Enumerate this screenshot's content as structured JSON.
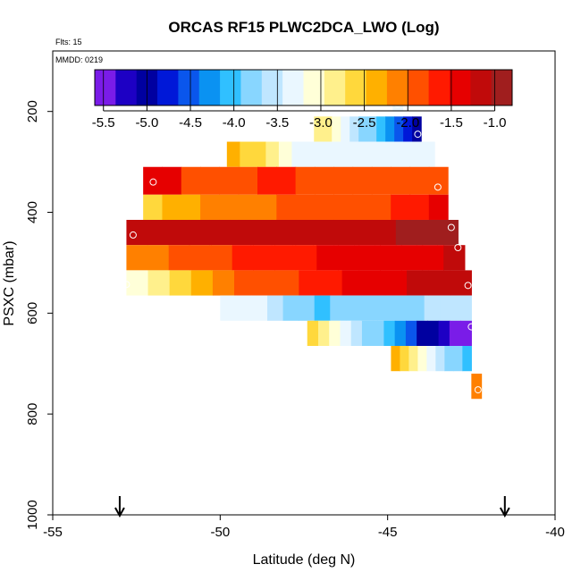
{
  "chart_data": {
    "type": "heatmap",
    "title": "ORCAS RF15 PLWC2DCA_LWO (Log)",
    "flights_label": "Flts: 15",
    "date_label": "MMDD: 0219",
    "xlabel": "Latitude (deg N)",
    "ylabel": "PSXC (mbar)",
    "xlim": [
      -55,
      -40
    ],
    "ylim": [
      1000,
      80
    ],
    "x_ticks": [
      -55,
      -50,
      -45,
      -40
    ],
    "y_ticks": [
      200,
      400,
      600,
      800,
      1000
    ],
    "colorbar": {
      "range": [
        -5.6,
        -0.8
      ],
      "ticks": [
        -5.5,
        -5.0,
        -4.5,
        -4.0,
        -3.5,
        -3.0,
        -2.5,
        -2.0,
        -1.5,
        -1.0
      ],
      "tick_labels": [
        "-5.5",
        "-5.0",
        "-4.5",
        "-4.0",
        "-3.5",
        "-3.0",
        "-2.5",
        "-2.0",
        "-1.5",
        "-1.0"
      ],
      "colors": [
        "#7a1ce8",
        "#1d00c4",
        "#0000a0",
        "#0018d8",
        "#0a56ec",
        "#0a92f2",
        "#30c0ff",
        "#88d6ff",
        "#bfe6ff",
        "#eaf7ff",
        "#ffffd8",
        "#fff08c",
        "#ffd83c",
        "#ffb000",
        "#ff8000",
        "#ff5000",
        "#ff1a00",
        "#e60000",
        "#c00a0a",
        "#a01e1e"
      ]
    },
    "arrows_at_latitude": [
      -53.0,
      -41.5
    ],
    "bands": [
      {
        "p_top": 175,
        "p_bottom": 200,
        "x0": -44.85,
        "x1": -44.55,
        "values": [
          -3.4
        ]
      },
      {
        "p_top": 210,
        "p_bottom": 260,
        "x0": -47.2,
        "x1": -44.0,
        "values": [
          -2.8,
          -2.9,
          -3.1,
          -3.3,
          -3.5,
          -3.7,
          -3.9,
          -4.1,
          -4.3,
          -4.5,
          -4.8,
          -5.1
        ]
      },
      {
        "p_top": 260,
        "p_bottom": 310,
        "x0": -49.8,
        "x1": -43.6,
        "values": [
          -2.3,
          -2.5,
          -2.7,
          -2.9,
          -3.1,
          -3.3,
          -3.4,
          -3.4,
          -3.4,
          -3.4,
          -3.4,
          -3.4,
          -3.4,
          -3.4,
          -3.4,
          -3.4
        ]
      },
      {
        "p_top": 310,
        "p_bottom": 365,
        "x0": -52.3,
        "x1": -43.2,
        "values": [
          -1.5,
          -1.5,
          -1.8,
          -1.8,
          -1.8,
          -1.8,
          -1.6,
          -1.6,
          -1.8,
          -1.8,
          -1.8,
          -1.8,
          -1.9,
          -1.9,
          -1.9,
          -2.0
        ]
      },
      {
        "p_top": 365,
        "p_bottom": 415,
        "x0": -52.3,
        "x1": -43.2,
        "values": [
          -2.5,
          -2.4,
          -2.3,
          -2.2,
          -2.2,
          -2.1,
          -2.1,
          -2.0,
          -2.0,
          -1.9,
          -1.9,
          -1.8,
          -1.8,
          -1.7,
          -1.6,
          -1.5
        ]
      },
      {
        "p_top": 415,
        "p_bottom": 465,
        "x0": -52.8,
        "x1": -42.9,
        "values": [
          -1.1,
          -1.1,
          -1.1,
          -1.1,
          -1.1,
          -1.1,
          -1.1,
          -1.1,
          -1.1,
          -1.1,
          -1.1,
          -1.1,
          -1.1,
          -1.0,
          -1.0,
          -1.0
        ]
      },
      {
        "p_top": 465,
        "p_bottom": 515,
        "x0": -52.8,
        "x1": -42.7,
        "values": [
          -2.1,
          -2.1,
          -2.0,
          -1.9,
          -1.8,
          -1.7,
          -1.7,
          -1.6,
          -1.6,
          -1.5,
          -1.4,
          -1.4,
          -1.3,
          -1.3,
          -1.3,
          -1.2
        ]
      },
      {
        "p_top": 515,
        "p_bottom": 565,
        "x0": -52.8,
        "x1": -42.5,
        "values": [
          -3.0,
          -2.8,
          -2.6,
          -2.3,
          -2.2,
          -2.0,
          -1.9,
          -1.8,
          -1.7,
          -1.6,
          -1.5,
          -1.4,
          -1.3,
          -1.2,
          -1.2,
          -1.1
        ]
      },
      {
        "p_top": 565,
        "p_bottom": 615,
        "x0": -50.0,
        "x1": -42.5,
        "values": [
          -3.2,
          -3.3,
          -3.4,
          -3.6,
          -3.8,
          -3.9,
          -4.0,
          -3.9,
          -3.9,
          -3.8,
          -3.7,
          -3.7,
          -3.7,
          -3.6,
          -3.5,
          -3.5
        ]
      },
      {
        "p_top": 615,
        "p_bottom": 665,
        "x0": -47.4,
        "x1": -42.5,
        "values": [
          -2.7,
          -2.8,
          -3.0,
          -3.2,
          -3.5,
          -3.7,
          -3.9,
          -4.1,
          -4.3,
          -4.6,
          -4.9,
          -5.1,
          -5.3,
          -5.4,
          -5.6
        ]
      },
      {
        "p_top": 665,
        "p_bottom": 715,
        "x0": -44.9,
        "x1": -42.5,
        "values": [
          -2.3,
          -2.5,
          -2.8,
          -3.0,
          -3.3,
          -3.5,
          -3.7,
          -3.9,
          -4.0
        ]
      },
      {
        "p_top": 720,
        "p_bottom": 770,
        "x0": -42.5,
        "x1": -42.2,
        "values": [
          -2.2
        ]
      }
    ],
    "circles": [
      {
        "lat": -44.7,
        "p": 185
      },
      {
        "lat": -44.1,
        "p": 245
      },
      {
        "lat": -52.0,
        "p": 340
      },
      {
        "lat": -43.5,
        "p": 350
      },
      {
        "lat": -52.5,
        "p": 393
      },
      {
        "lat": -43.1,
        "p": 430
      },
      {
        "lat": -52.6,
        "p": 445
      },
      {
        "lat": -42.9,
        "p": 470
      },
      {
        "lat": -42.6,
        "p": 545
      },
      {
        "lat": -52.8,
        "p": 543
      },
      {
        "lat": -42.5,
        "p": 627
      },
      {
        "lat": -42.3,
        "p": 752
      }
    ]
  }
}
